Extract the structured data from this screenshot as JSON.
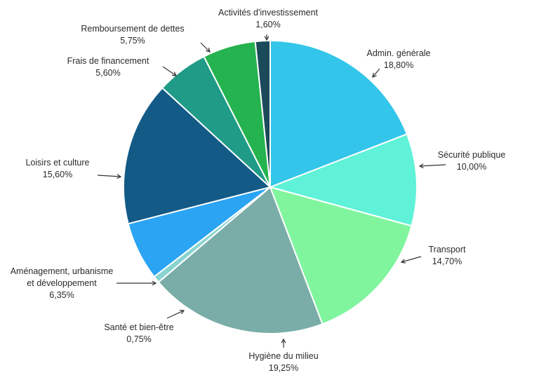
{
  "chart_data": {
    "type": "pie",
    "title": "",
    "start": "top",
    "direction": "clockwise",
    "slices": [
      {
        "name": "Admin. générale",
        "value_label": "18,80%",
        "value": 18.8,
        "color": "#33c5ea"
      },
      {
        "name": "Sécurité publique",
        "value_label": "10,00%",
        "value": 10.0,
        "color": "#5ff2d8"
      },
      {
        "name": "Transport",
        "value_label": "14,70%",
        "value": 14.7,
        "color": "#80f59e"
      },
      {
        "name": "Hygiène du milieu",
        "value_label": "19,25%",
        "value": 19.25,
        "color": "#7aada7"
      },
      {
        "name": "Santé et bien-être",
        "value_label": "0,75%",
        "value": 0.75,
        "color": "#8ad4d0"
      },
      {
        "name": "Aménagement, urbanisme et développement",
        "value_label": "6,35%",
        "value": 6.35,
        "color": "#2aa4f3"
      },
      {
        "name": "Loisirs et culture",
        "value_label": "15,60%",
        "value": 15.6,
        "color": "#135a86"
      },
      {
        "name": "Frais de financement",
        "value_label": "5,60%",
        "value": 5.6,
        "color": "#1f9b87"
      },
      {
        "name": "Remboursement de dettes",
        "value_label": "5,75%",
        "value": 5.75,
        "color": "#24b34e"
      },
      {
        "name": "Activités d'investissement",
        "value_label": "1,60%",
        "value": 1.6,
        "color": "#1b4a5a"
      }
    ]
  }
}
